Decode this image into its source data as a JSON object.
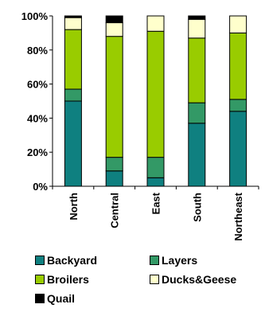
{
  "chart_data": {
    "type": "bar",
    "stacked": true,
    "categories": [
      "North",
      "Central",
      "East",
      "South",
      "Northeast"
    ],
    "series": [
      {
        "name": "Backyard",
        "color": "#0f8080",
        "values": [
          50,
          9,
          5,
          37,
          44
        ]
      },
      {
        "name": "Layers",
        "color": "#339966",
        "values": [
          7,
          8,
          12,
          12,
          7
        ]
      },
      {
        "name": "Broilers",
        "color": "#99cc00",
        "values": [
          35,
          71,
          74,
          38,
          39
        ]
      },
      {
        "name": "Ducks&Geese",
        "color": "#ffffcc",
        "values": [
          7,
          8,
          9,
          11,
          10
        ]
      },
      {
        "name": "Quail",
        "color": "#000000",
        "values": [
          1,
          4,
          0,
          2,
          0
        ]
      }
    ],
    "ylim": [
      0,
      100
    ],
    "ytick_labels": [
      "0%",
      "20%",
      "40%",
      "60%",
      "80%",
      "100%"
    ],
    "grid": false,
    "legend_position": "bottom"
  }
}
